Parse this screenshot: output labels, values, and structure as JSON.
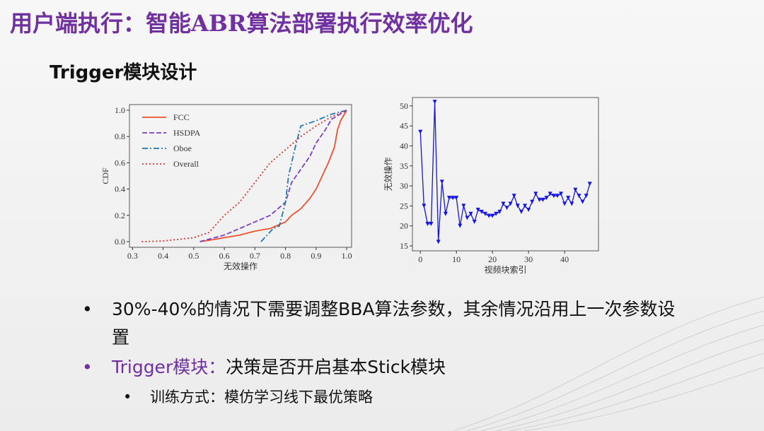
{
  "slide": {
    "title": "用户端执行：智能ABR算法部署执行效率优化",
    "subtitle": "Trigger模块设计",
    "bullets": [
      {
        "text": "30%-40%的情况下需要调整BBA算法参数，其余情况沿用上一次参数设置"
      },
      {
        "label": "Trigger模块：",
        "text": "决策是否开启基本Stick模块"
      }
    ],
    "sub_bullets": [
      "训练方式：模仿学习线下最优策略"
    ]
  },
  "chart_data": [
    {
      "type": "line",
      "xlabel": "无效操作",
      "ylabel": "CDF",
      "xlim": [
        0.29,
        1.016
      ],
      "ylim": [
        -0.043,
        1.043
      ],
      "xticks": [
        0.3,
        0.4,
        0.5,
        0.6,
        0.7,
        0.8,
        0.9,
        {
          "value": 1,
          "label": "1.0"
        }
      ],
      "yticks": [
        {
          "value": 0,
          "label": "0.0"
        },
        0.2,
        0.4,
        0.6,
        0.8,
        {
          "value": 1,
          "label": "1.0"
        }
      ],
      "legend": "upper left",
      "series": [
        {
          "name": "FCC",
          "color": "#f0502d",
          "linestyle": "solid",
          "x": [
            0.52,
            0.55,
            0.6,
            0.65,
            0.7,
            0.75,
            0.8,
            0.82,
            0.85,
            0.88,
            0.9,
            0.92,
            0.94,
            0.96,
            0.97,
            0.98,
            1.0
          ],
          "values": [
            0,
            0.01,
            0.03,
            0.05,
            0.08,
            0.1,
            0.15,
            0.2,
            0.25,
            0.33,
            0.4,
            0.5,
            0.6,
            0.72,
            0.85,
            0.92,
            1.0
          ]
        },
        {
          "name": "HSDPA",
          "color": "#7a3fc4",
          "linestyle": "dashed",
          "x": [
            0.52,
            0.6,
            0.7,
            0.75,
            0.8,
            0.82,
            0.85,
            0.88,
            0.9,
            0.93,
            0.95,
            1.0
          ],
          "values": [
            0,
            0.05,
            0.15,
            0.2,
            0.3,
            0.45,
            0.55,
            0.65,
            0.75,
            0.85,
            0.93,
            1.0
          ]
        },
        {
          "name": "Oboe",
          "color": "#1f77b4",
          "linestyle": "dashdot",
          "x": [
            0.72,
            0.76,
            0.78,
            0.8,
            0.81,
            0.83,
            0.85,
            0.9,
            0.95,
            1.0
          ],
          "values": [
            0,
            0.1,
            0.12,
            0.3,
            0.5,
            0.7,
            0.88,
            0.92,
            0.97,
            1.0
          ]
        },
        {
          "name": "Overall",
          "color": "#e03030",
          "linestyle": "dotted",
          "x": [
            0.33,
            0.4,
            0.5,
            0.55,
            0.6,
            0.65,
            0.7,
            0.75,
            0.8,
            0.85,
            0.9,
            0.95,
            1.0
          ],
          "values": [
            0,
            0.005,
            0.03,
            0.07,
            0.2,
            0.3,
            0.45,
            0.6,
            0.7,
            0.8,
            0.88,
            0.95,
            1.0
          ]
        }
      ]
    },
    {
      "type": "line",
      "xlabel": "视频块索引",
      "ylabel": "无效操作",
      "xlim": [
        -2.2,
        49.4
      ],
      "ylim": [
        13.76,
        52.1
      ],
      "xticks": [
        0,
        10,
        20,
        30,
        40
      ],
      "yticks": [
        15,
        20,
        25,
        30,
        35,
        40,
        45,
        50
      ],
      "x": [
        0,
        1,
        2,
        3,
        4,
        5,
        6,
        7,
        8,
        9,
        10,
        11,
        12,
        13,
        14,
        15,
        16,
        17,
        18,
        19,
        20,
        21,
        22,
        23,
        24,
        25,
        26,
        27,
        28,
        29,
        30,
        31,
        32,
        33,
        34,
        35,
        36,
        37,
        38,
        39,
        40,
        41,
        42,
        43,
        44,
        45,
        46,
        47
      ],
      "series": [
        {
          "color": "#1414e6",
          "linestyle": "solid",
          "marker": "v",
          "values": [
            43.5,
            25,
            20.5,
            20.5,
            51,
            16,
            31,
            23,
            27,
            27,
            27,
            20,
            25,
            22,
            23,
            21,
            24,
            23.5,
            23,
            22.5,
            22.5,
            23,
            23.5,
            25.5,
            24.5,
            25.5,
            27.5,
            25,
            23.5,
            25,
            24,
            26,
            28,
            26.5,
            26.5,
            27,
            28,
            27.5,
            27.5,
            28,
            25.5,
            27,
            25.5,
            29,
            27.5,
            26,
            27.5,
            30.5
          ]
        }
      ]
    }
  ]
}
